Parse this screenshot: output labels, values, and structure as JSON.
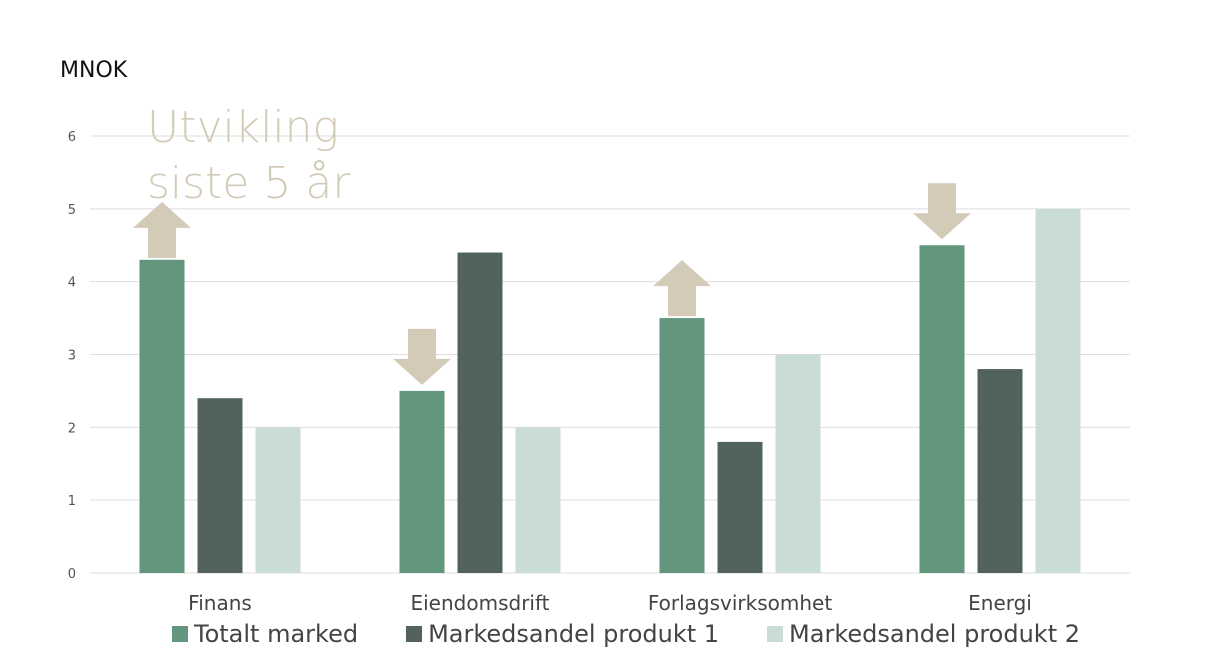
{
  "chart_data": {
    "type": "bar",
    "unit_label": "MNOK",
    "categories": [
      "Finans",
      "Eiendomsdrift",
      "Forlagsvirksomhet",
      "Energi"
    ],
    "series": [
      {
        "name": "Totalt marked",
        "values": [
          4.3,
          2.5,
          3.5,
          4.5
        ],
        "color": "#62977d"
      },
      {
        "name": "Markedsandel produkt 1",
        "values": [
          2.4,
          4.4,
          1.8,
          2.8
        ],
        "color": "#51635b"
      },
      {
        "name": "Markedsandel produkt 2",
        "values": [
          2.0,
          2.0,
          3.0,
          5.0
        ],
        "color": "#cadcd6"
      }
    ],
    "ylim": [
      0,
      6
    ],
    "yticks": [
      "0",
      "1",
      "2",
      "3",
      "4",
      "5",
      "6"
    ],
    "grid": true,
    "legend_position": "bottom",
    "annotation": {
      "lines": [
        "Utvikling",
        "siste 5 år"
      ],
      "color": "#d3cbb8"
    },
    "trend_arrows": [
      {
        "category": "Finans",
        "direction": "up"
      },
      {
        "category": "Eiendomsdrift",
        "direction": "down"
      },
      {
        "category": "Forlagsvirksomhet",
        "direction": "up"
      },
      {
        "category": "Energi",
        "direction": "down"
      }
    ],
    "arrow_color": "#d3cbb8"
  }
}
